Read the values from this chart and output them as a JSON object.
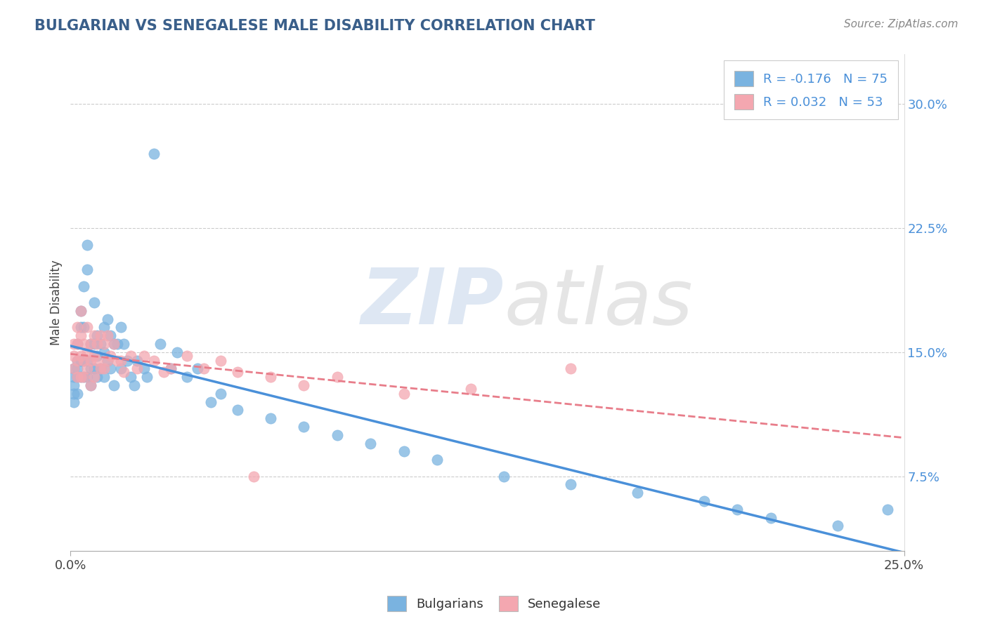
{
  "title": "BULGARIAN VS SENEGALESE MALE DISABILITY CORRELATION CHART",
  "source_text": "Source: ZipAtlas.com",
  "ylabel": "Male Disability",
  "y_ticks": [
    0.075,
    0.15,
    0.225,
    0.3
  ],
  "y_tick_labels": [
    "7.5%",
    "15.0%",
    "22.5%",
    "30.0%"
  ],
  "x_range": [
    0.0,
    0.25
  ],
  "y_range": [
    0.03,
    0.33
  ],
  "legend_r1": "R = -0.176   N = 75",
  "legend_r2": "R = 0.032   N = 53",
  "bg_color": "#ffffff",
  "plot_bg_color": "#ffffff",
  "grid_color": "#cccccc",
  "blue_color": "#7ab3e0",
  "pink_color": "#f4a7b0",
  "blue_line_color": "#4a90d9",
  "pink_line_color": "#e87d8a",
  "title_color": "#3a5f8a",
  "bulgarians_x": [
    0.001,
    0.001,
    0.001,
    0.001,
    0.001,
    0.002,
    0.002,
    0.002,
    0.002,
    0.002,
    0.003,
    0.003,
    0.003,
    0.003,
    0.004,
    0.004,
    0.004,
    0.004,
    0.005,
    0.005,
    0.005,
    0.005,
    0.006,
    0.006,
    0.006,
    0.007,
    0.007,
    0.007,
    0.008,
    0.008,
    0.008,
    0.009,
    0.009,
    0.01,
    0.01,
    0.01,
    0.011,
    0.011,
    0.012,
    0.012,
    0.013,
    0.013,
    0.014,
    0.015,
    0.015,
    0.016,
    0.017,
    0.018,
    0.019,
    0.02,
    0.022,
    0.023,
    0.025,
    0.027,
    0.03,
    0.032,
    0.035,
    0.038,
    0.042,
    0.045,
    0.05,
    0.06,
    0.07,
    0.08,
    0.09,
    0.1,
    0.11,
    0.13,
    0.15,
    0.17,
    0.19,
    0.2,
    0.21,
    0.23,
    0.245
  ],
  "bulgarians_y": [
    0.14,
    0.13,
    0.125,
    0.135,
    0.12,
    0.145,
    0.155,
    0.135,
    0.125,
    0.14,
    0.165,
    0.175,
    0.145,
    0.135,
    0.19,
    0.165,
    0.145,
    0.135,
    0.215,
    0.2,
    0.145,
    0.135,
    0.155,
    0.14,
    0.13,
    0.18,
    0.155,
    0.14,
    0.16,
    0.148,
    0.135,
    0.155,
    0.14,
    0.165,
    0.15,
    0.135,
    0.17,
    0.145,
    0.16,
    0.14,
    0.155,
    0.13,
    0.155,
    0.165,
    0.14,
    0.155,
    0.145,
    0.135,
    0.13,
    0.145,
    0.14,
    0.135,
    0.27,
    0.155,
    0.14,
    0.15,
    0.135,
    0.14,
    0.12,
    0.125,
    0.115,
    0.11,
    0.105,
    0.1,
    0.095,
    0.09,
    0.085,
    0.075,
    0.07,
    0.065,
    0.06,
    0.055,
    0.05,
    0.045,
    0.055
  ],
  "senegalese_x": [
    0.001,
    0.001,
    0.001,
    0.002,
    0.002,
    0.002,
    0.002,
    0.003,
    0.003,
    0.003,
    0.003,
    0.004,
    0.004,
    0.004,
    0.005,
    0.005,
    0.005,
    0.006,
    0.006,
    0.006,
    0.007,
    0.007,
    0.007,
    0.008,
    0.008,
    0.009,
    0.009,
    0.01,
    0.01,
    0.011,
    0.011,
    0.012,
    0.013,
    0.014,
    0.015,
    0.016,
    0.018,
    0.02,
    0.022,
    0.025,
    0.028,
    0.03,
    0.035,
    0.04,
    0.045,
    0.05,
    0.06,
    0.07,
    0.08,
    0.1,
    0.12,
    0.15,
    0.055
  ],
  "senegalese_y": [
    0.155,
    0.148,
    0.14,
    0.165,
    0.155,
    0.145,
    0.135,
    0.175,
    0.16,
    0.148,
    0.135,
    0.155,
    0.145,
    0.135,
    0.165,
    0.15,
    0.14,
    0.155,
    0.145,
    0.13,
    0.16,
    0.148,
    0.135,
    0.155,
    0.145,
    0.16,
    0.14,
    0.155,
    0.14,
    0.16,
    0.145,
    0.148,
    0.155,
    0.145,
    0.145,
    0.138,
    0.148,
    0.14,
    0.148,
    0.145,
    0.138,
    0.14,
    0.148,
    0.14,
    0.145,
    0.138,
    0.135,
    0.13,
    0.135,
    0.125,
    0.128,
    0.14,
    0.075
  ]
}
